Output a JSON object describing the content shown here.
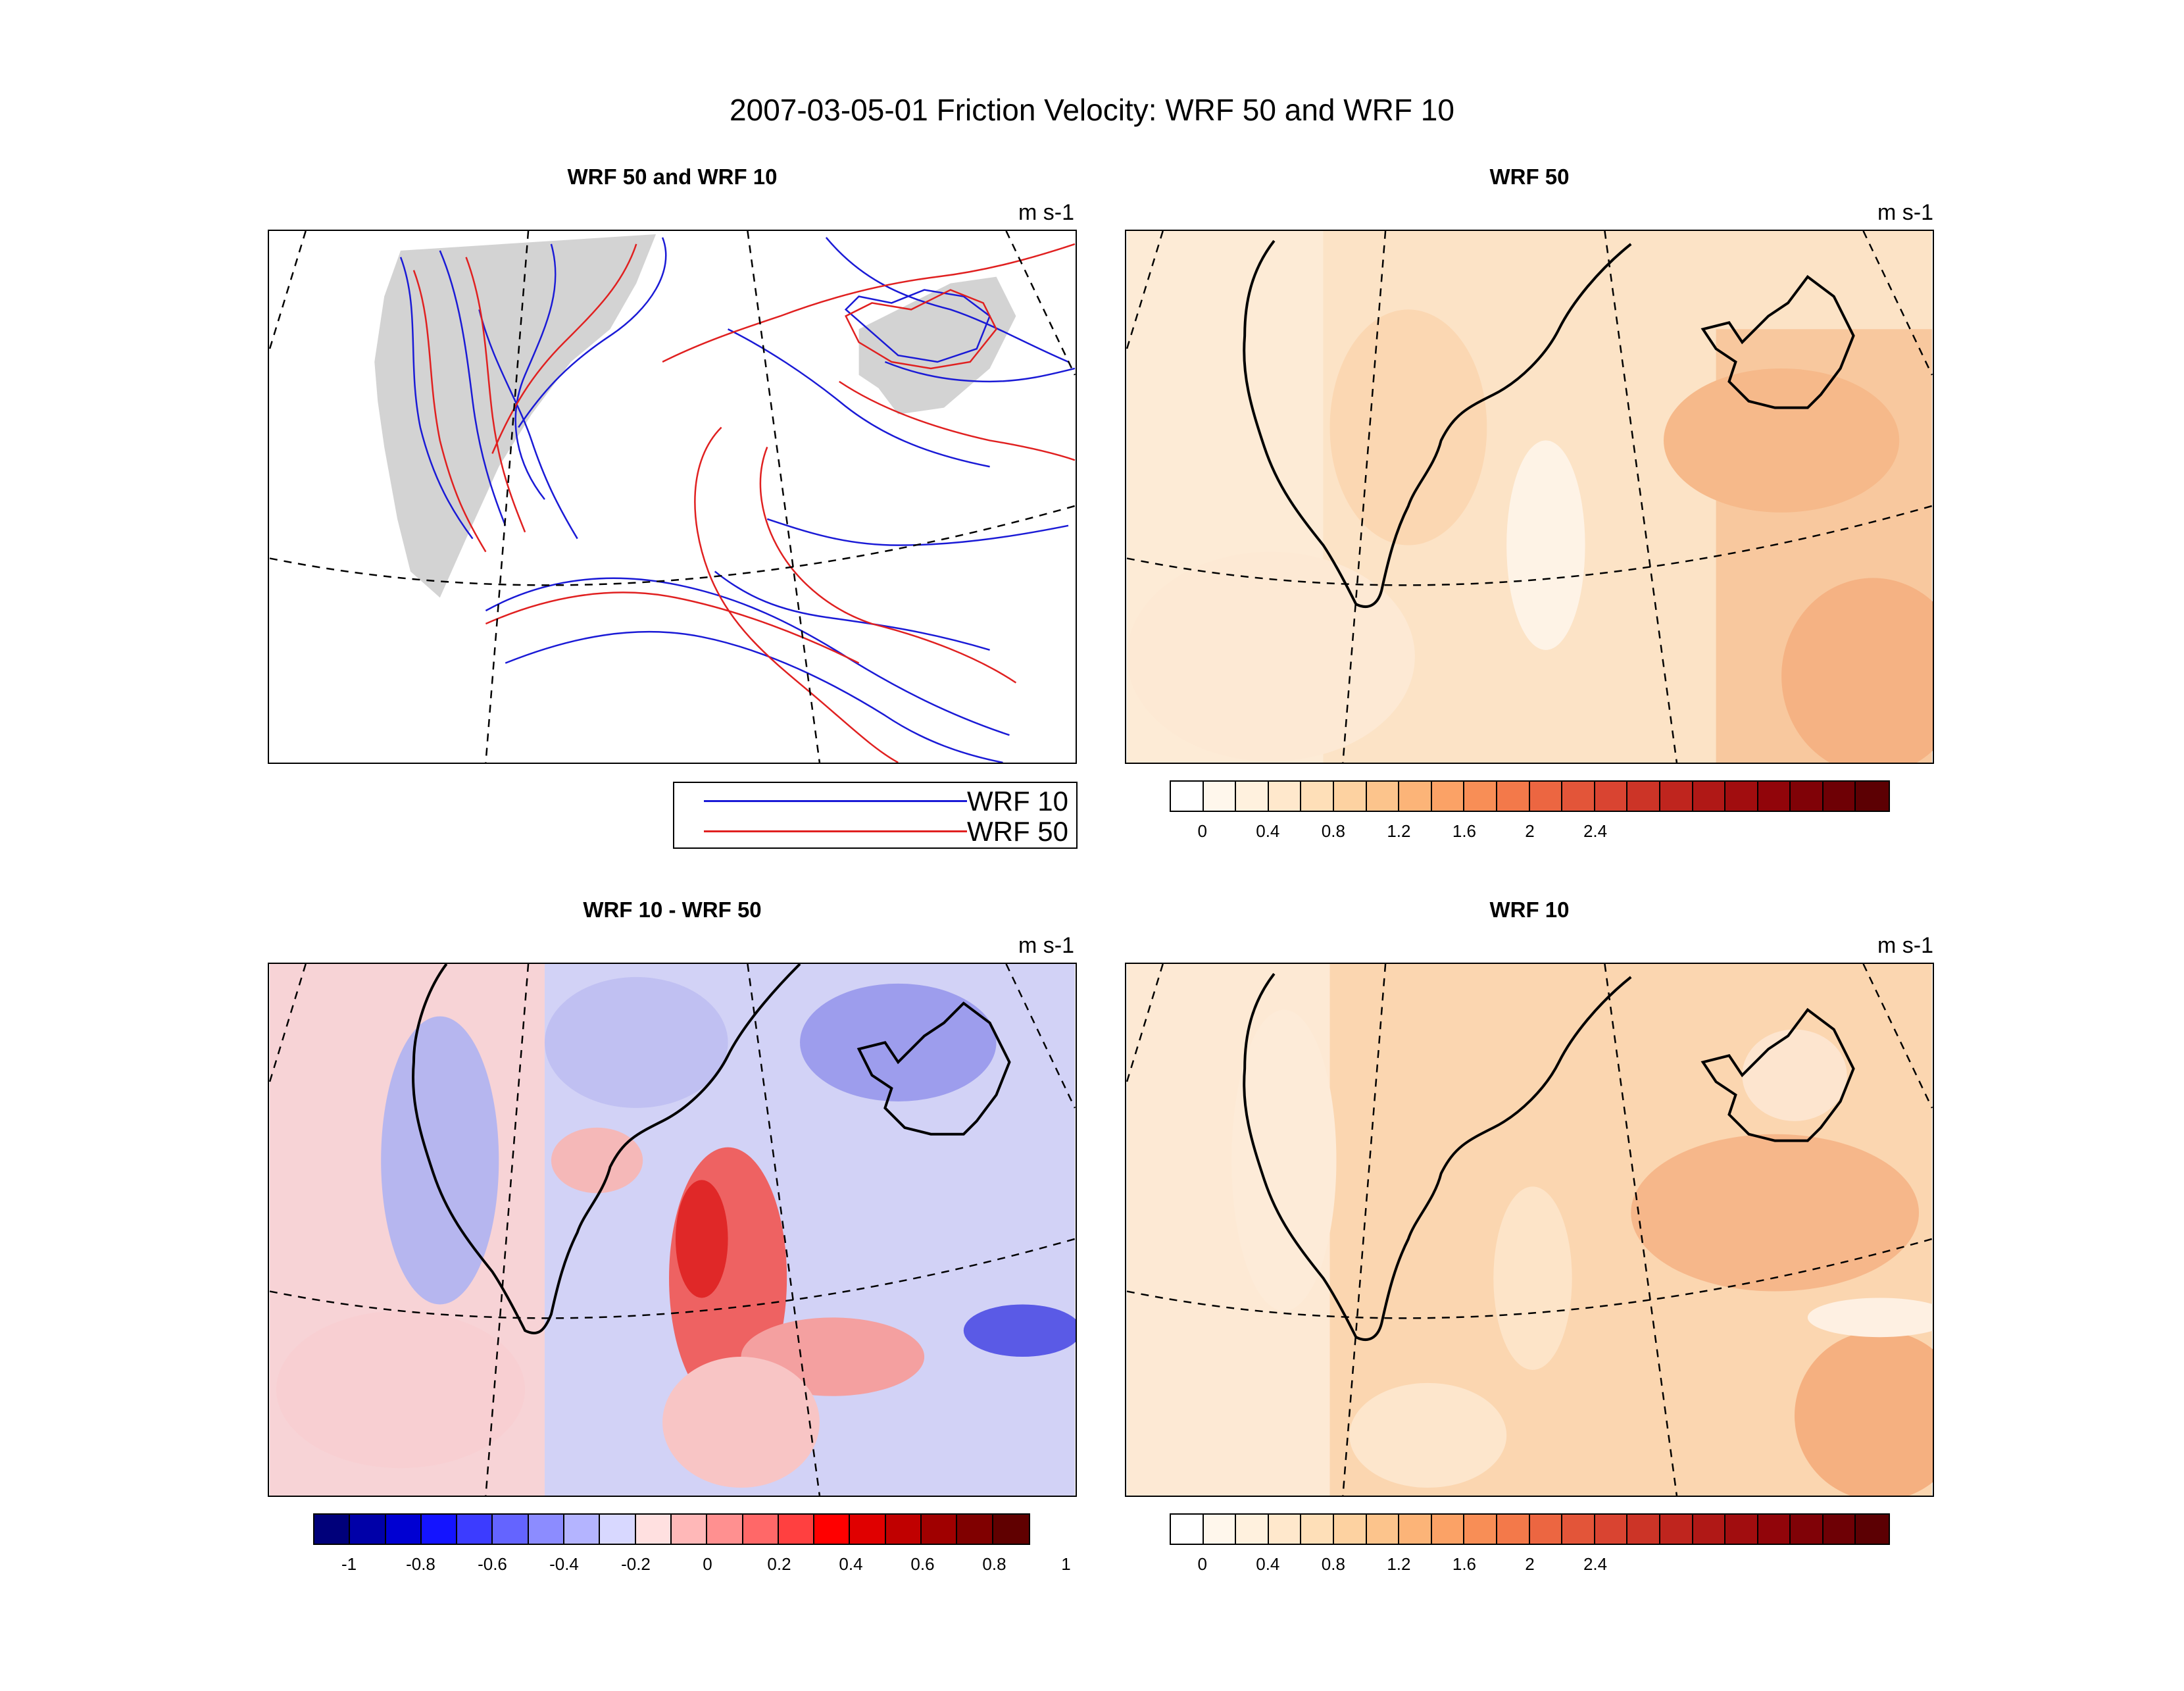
{
  "figure_title": "2007-03-05-01 Friction Velocity: WRF 50 and WRF 10",
  "panels": {
    "contour": {
      "title": "WRF 50 and WRF 10",
      "units": "m s-1"
    },
    "wrf50": {
      "title": "WRF 50",
      "units": "m s-1"
    },
    "diff": {
      "title": "WRF 10 - WRF 50",
      "units": "m s-1"
    },
    "wrf10": {
      "title": "WRF 10",
      "units": "m s-1"
    }
  },
  "legend": {
    "items": [
      {
        "label": "WRF 10",
        "color": "#1a1ad6"
      },
      {
        "label": "WRF 50",
        "color": "#e02020"
      }
    ]
  },
  "colorbar_positive": {
    "ticks": [
      "0",
      "0.4",
      "0.8",
      "1.2",
      "1.6",
      "2",
      "2.4"
    ],
    "colors": [
      "#ffffff",
      "#fff7ec",
      "#fff1de",
      "#ffe8cc",
      "#fedfb8",
      "#fdd2a1",
      "#fcc48c",
      "#fcb478",
      "#fba266",
      "#f88e56",
      "#f3794a",
      "#ec6641",
      "#e35539",
      "#d94431",
      "#cc3427",
      "#bf251e",
      "#b01816",
      "#a10d0f",
      "#91050a",
      "#800207",
      "#6e0005",
      "#5c0003"
    ]
  },
  "colorbar_diff": {
    "ticks": [
      "-1",
      "-0.8",
      "-0.6",
      "-0.4",
      "-0.2",
      "0",
      "0.2",
      "0.4",
      "0.6",
      "0.8",
      "1"
    ],
    "colors": [
      "#00007a",
      "#0000a8",
      "#0000d2",
      "#1414ff",
      "#3c3cff",
      "#6464ff",
      "#8c8cff",
      "#b4b4ff",
      "#d8d8ff",
      "#ffe0e0",
      "#ffb8b8",
      "#ff9090",
      "#ff6868",
      "#ff4040",
      "#ff0000",
      "#e00000",
      "#c00000",
      "#a00000",
      "#800000",
      "#600000"
    ]
  },
  "colors": {
    "land_gray": "#d3d3d3",
    "warm_base": "#fbdcb6",
    "diff_neg": "#c9c9f5",
    "diff_pos": "#f8cccc"
  }
}
